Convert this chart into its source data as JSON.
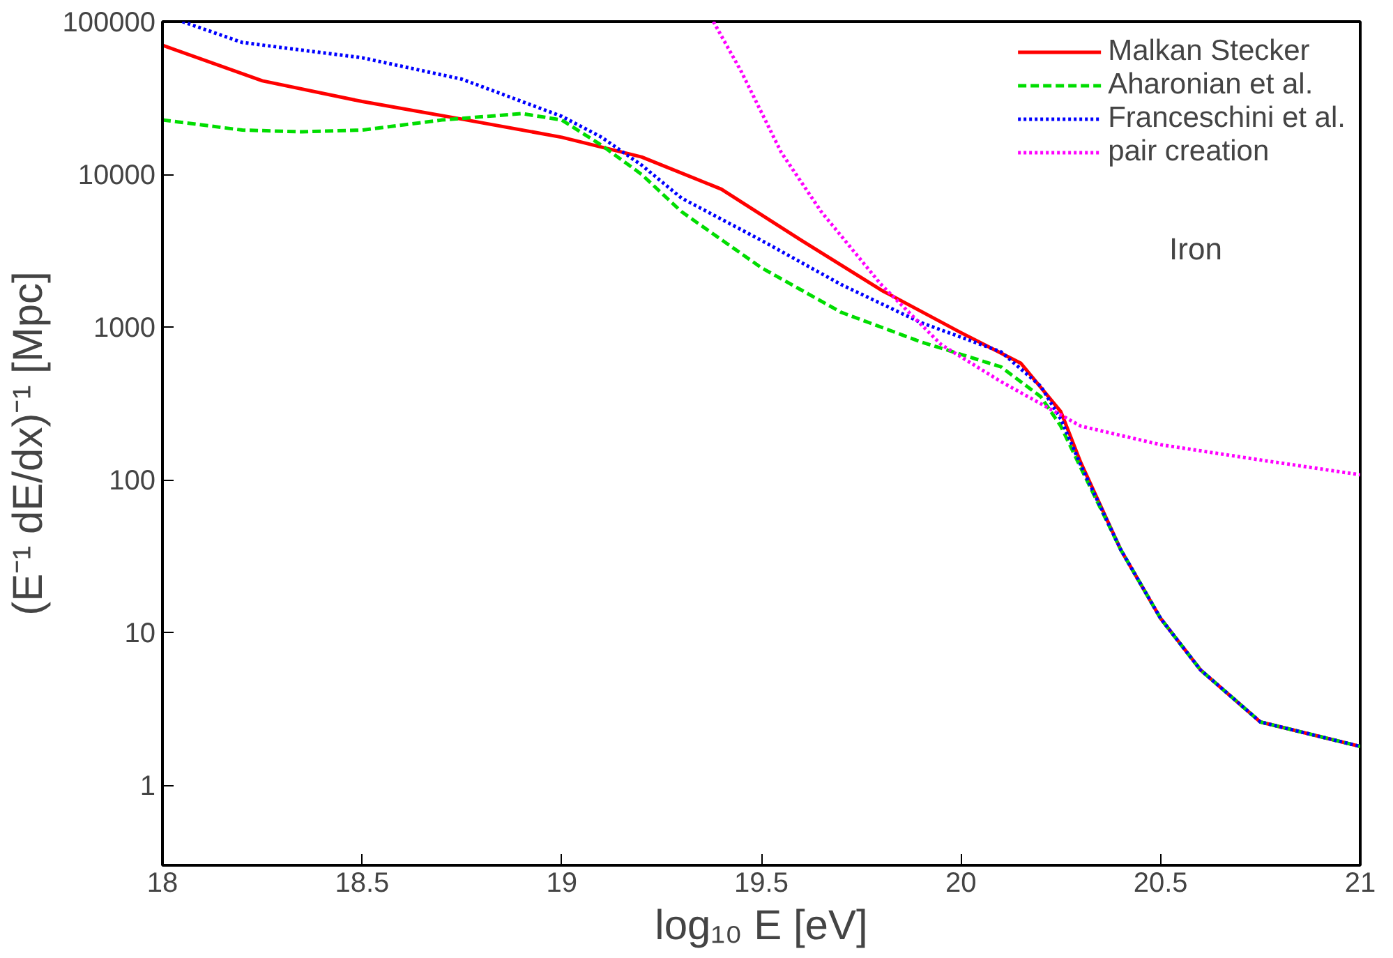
{
  "chart_data": {
    "type": "line",
    "xlabel": "log₁₀ E [eV]",
    "ylabel": "(E⁻¹ dE/dx)⁻¹ [Mpc]",
    "annotations": [
      "Iron"
    ],
    "xlim": [
      18,
      21
    ],
    "xticks": [
      18,
      18.5,
      19,
      19.5,
      20,
      20.5,
      21
    ],
    "ylim": [
      0.3,
      100000
    ],
    "yticks": [
      1,
      10,
      100,
      1000,
      10000,
      100000
    ],
    "log": "y",
    "grid": false,
    "legend": "top right",
    "series": [
      {
        "name": "Malkan Stecker",
        "color": "#ff0000",
        "line_style": "solid",
        "x": [
          18,
          18.25,
          18.5,
          18.75,
          19,
          19.2,
          19.4,
          19.6,
          19.8,
          20,
          20.15,
          20.25,
          20.3,
          20.4,
          20.5,
          20.6,
          20.75,
          21
        ],
        "values": [
          70000,
          41000,
          30000,
          23000,
          17500,
          13000,
          8000,
          3700,
          1750,
          920,
          580,
          280,
          130,
          35,
          12.4,
          5.7,
          2.6,
          1.8
        ]
      },
      {
        "name": "Aharonian et al.",
        "color": "#00dd00",
        "line_style": "dashed",
        "x": [
          18,
          18.2,
          18.35,
          18.5,
          18.7,
          18.9,
          19,
          19.1,
          19.2,
          19.3,
          19.5,
          19.7,
          19.9,
          20.1,
          20.2,
          20.25,
          20.3,
          20.4,
          20.5,
          20.6,
          20.75,
          21
        ],
        "values": [
          22700,
          19500,
          19000,
          19500,
          22700,
          25000,
          22700,
          15500,
          10000,
          5700,
          2450,
          1250,
          800,
          550,
          350,
          225,
          120,
          35,
          12.4,
          5.7,
          2.6,
          1.8
        ]
      },
      {
        "name": "Franceschini et al.",
        "color": "#0000ff",
        "line_style": "dotted",
        "x": [
          18.05,
          18.2,
          18.5,
          18.75,
          19,
          19.1,
          19.2,
          19.3,
          19.5,
          19.7,
          19.9,
          20.1,
          20.2,
          20.25,
          20.3,
          20.4,
          20.5,
          20.6,
          20.75,
          21
        ],
        "values": [
          100000,
          73000,
          58000,
          42000,
          24000,
          17500,
          11500,
          7000,
          3700,
          1900,
          1070,
          690,
          410,
          250,
          125,
          35,
          12.4,
          5.7,
          2.6,
          1.8
        ]
      },
      {
        "name": "pair creation",
        "color": "#ff00ff",
        "line_style": "dotted",
        "x": [
          19.38,
          19.45,
          19.55,
          19.65,
          19.8,
          19.95,
          20.1,
          20.2,
          20.3,
          20.5,
          20.75,
          21
        ],
        "values": [
          100000,
          47000,
          13900,
          5700,
          1900,
          770,
          440,
          315,
          225,
          170,
          135,
          108
        ]
      }
    ]
  }
}
